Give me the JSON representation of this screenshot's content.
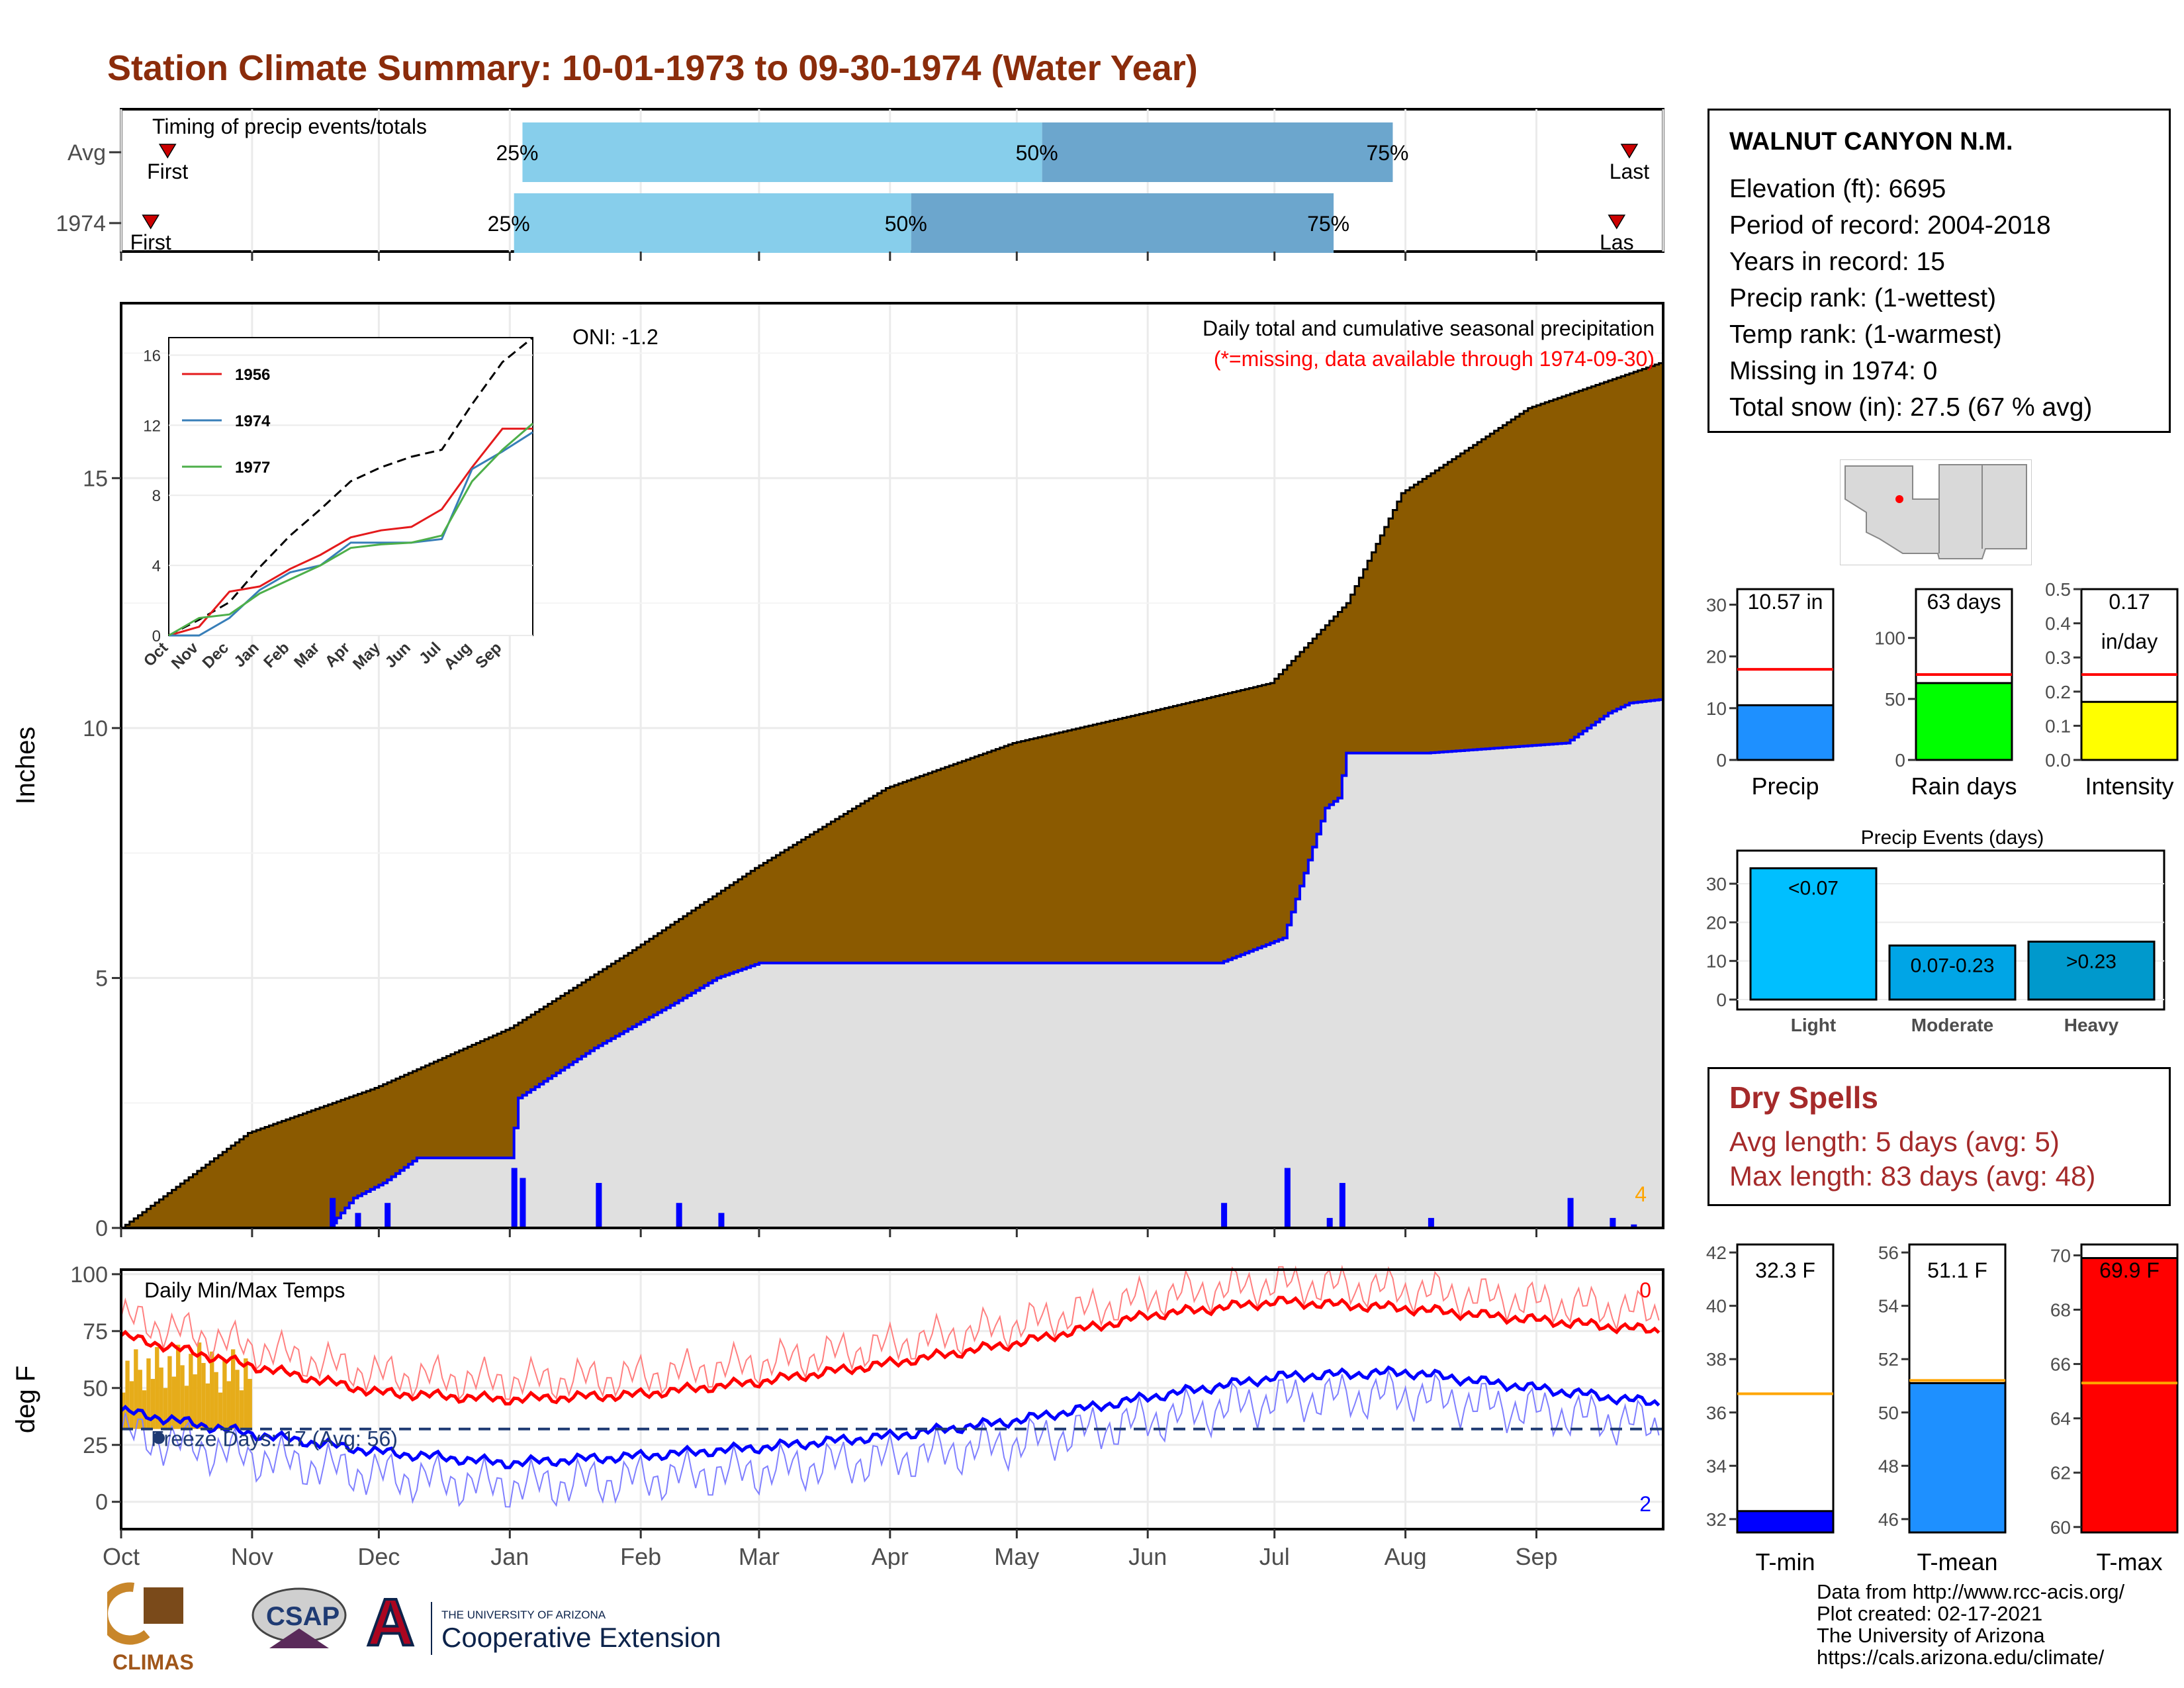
{
  "page": {
    "title": "Station Climate Summary: 10-01-1973 to 09-30-1974 (Water Year)"
  },
  "colors": {
    "title": "#8b2c0b",
    "bar_light": "#87ceeb",
    "bar_dark": "#6ca6cd",
    "cumulative_avg": "#8b5a00",
    "cumulative_year": "#e0e0e0",
    "year_line": "#0000ff",
    "daily_bars": "#0000ff",
    "freeze": "#e6ac1a",
    "tmax": "#ff0000",
    "tmin": "#0000ff"
  },
  "timing": {
    "label": "Timing of precip events/totals",
    "rows": [
      {
        "name": "Avg",
        "first": "First",
        "last": "Last",
        "p25": "25%",
        "p50": "50%",
        "p75": "75%",
        "p25_doy": 95,
        "p50_doy": 218,
        "p75_doy": 301,
        "first_doy": 11,
        "last_doy": 357
      },
      {
        "name": "1974",
        "first": "First",
        "last": "Las",
        "p25": "25%",
        "p50": "50%",
        "p75": "75%",
        "p25_doy": 93,
        "p50_doy": 187,
        "p75_doy": 287,
        "first_doy": 7,
        "last_doy": 354
      }
    ]
  },
  "main": {
    "ylabel": "Inches",
    "oni": "ONI: -1.2",
    "note1": "Daily total and cumulative seasonal precipitation",
    "note2": "(*=missing, data available through 1974-09-30)",
    "count_label": "4",
    "ylim": [
      0,
      18.5
    ],
    "yticks": [
      "0",
      "5",
      "10",
      "15"
    ]
  },
  "inset": {
    "series": [
      "1956",
      "1974",
      "1977"
    ],
    "yticks": [
      "0",
      "4",
      "8",
      "12",
      "16"
    ],
    "xticks": [
      "Oct",
      "Nov",
      "Dec",
      "Jan",
      "Feb",
      "Mar",
      "Apr",
      "May",
      "Jun",
      "Jul",
      "Aug",
      "Sep"
    ]
  },
  "temps": {
    "label": "Daily Min/Max Temps",
    "ylabel": "deg F",
    "freeze_label": "Freeze Days: 17 (Avg: 56)",
    "count_top": "0",
    "count_bottom": "2",
    "yticks": [
      "0",
      "25",
      "50",
      "75",
      "100"
    ]
  },
  "months": [
    "Oct",
    "Nov",
    "Dec",
    "Jan",
    "Feb",
    "Mar",
    "Apr",
    "May",
    "Jun",
    "Jul",
    "Aug",
    "Sep"
  ],
  "station": {
    "name": "WALNUT CANYON N.M.",
    "elevation": "Elevation (ft): 6695",
    "period": "Period of record: 2004-2018",
    "years": "Years in record: 15",
    "precip_rank": "Precip rank:  (1-wettest)",
    "temp_rank": "Temp rank:  (1-warmest)",
    "missing": "Missing in 1974: 0",
    "snow": "Total snow (in): 27.5 (67 % avg)"
  },
  "mini_bars": {
    "precip": {
      "label": "Precip",
      "value_text": "10.57 in",
      "value": 10.57,
      "avg": 17.5,
      "max": 33,
      "ticks": [
        "0",
        "10",
        "20",
        "30"
      ],
      "color": "#1e90ff"
    },
    "rain_days": {
      "label": "Rain days",
      "value_text": "63 days",
      "value": 63,
      "avg": 70,
      "max": 140,
      "ticks": [
        "0",
        "50",
        "100"
      ],
      "color": "#00ff00"
    },
    "intensity": {
      "label": "Intensity",
      "value_text": "0.17",
      "value_text2": "in/day",
      "value": 0.17,
      "avg": 0.25,
      "max": 0.5,
      "ticks": [
        "0.0",
        "0.1",
        "0.2",
        "0.3",
        "0.4",
        "0.5"
      ],
      "color": "#ffff00"
    }
  },
  "events": {
    "title": "Precip Events (days)",
    "ticks": [
      "0",
      "10",
      "20",
      "30"
    ],
    "bars": [
      {
        "label": "Light",
        "text": "<0.07",
        "value": 34,
        "color": "#00bfff"
      },
      {
        "label": "Moderate",
        "text": "0.07-0.23",
        "value": 14,
        "color": "#00a5e6"
      },
      {
        "label": "Heavy",
        "text": ">0.23",
        "value": 15,
        "color": "#0099cc"
      }
    ]
  },
  "dry_spells": {
    "title": "Dry Spells",
    "avg": "Avg length: 5 days (avg: 5)",
    "max": "Max length: 83 days (avg: 48)"
  },
  "temp_bars": {
    "tmin": {
      "label": "T-min",
      "value_text": "32.3 F",
      "value": 32.3,
      "avg": 36.7,
      "min": 31.5,
      "max": 42.3,
      "ticks": [
        "32",
        "34",
        "36",
        "38",
        "40",
        "42"
      ],
      "color": "#0000ff"
    },
    "tmean": {
      "label": "T-mean",
      "value_text": "51.1 F",
      "value": 51.1,
      "avg": 51.2,
      "min": 45.5,
      "max": 56.3,
      "ticks": [
        "46",
        "48",
        "50",
        "52",
        "54",
        "56"
      ],
      "color": "#1e90ff"
    },
    "tmax": {
      "label": "T-max",
      "value_text": "69.9 F",
      "value": 69.9,
      "avg": 65.3,
      "min": 59.8,
      "max": 70.4,
      "ticks": [
        "60",
        "62",
        "64",
        "66",
        "68",
        "70"
      ],
      "color": "#ff0000"
    }
  },
  "footer": {
    "l1": "Data from http://www.rcc-acis.org/",
    "l2": "Plot created: 02-17-2021",
    "l3": "The University of Arizona",
    "l4": "https://cals.arizona.edu/climate/"
  },
  "logos": {
    "climas": "CLIMAS",
    "csap": "CSAP",
    "ua_small": "THE UNIVERSITY OF ARIZONA",
    "ua_big": "Cooperative Extension"
  },
  "chart_data": [
    {
      "type": "area",
      "title": "Daily total and cumulative seasonal precipitation",
      "ylabel": "Inches",
      "ylim": [
        0,
        18.5
      ],
      "x_unit": "day of water year (Oct 1 = 0)",
      "series": [
        {
          "name": "average cumulative",
          "x": [
            0,
            30,
            60,
            92,
            120,
            150,
            181,
            211,
            242,
            272,
            290,
            303,
            333,
            364
          ],
          "values": [
            0,
            1.9,
            2.8,
            4.0,
            5.5,
            7.2,
            8.8,
            9.7,
            10.3,
            10.9,
            12.5,
            14.7,
            16.4,
            17.3
          ]
        },
        {
          "name": "1974 cumulative",
          "x": [
            0,
            49,
            55,
            62,
            70,
            92,
            94,
            112,
            131,
            141,
            151,
            175,
            182,
            260,
            275,
            285,
            288,
            290,
            309,
            342,
            352,
            357,
            364
          ],
          "values": [
            0,
            0,
            0.6,
            0.9,
            1.4,
            1.4,
            2.6,
            3.6,
            4.5,
            5.0,
            5.3,
            5.3,
            5.3,
            5.3,
            5.8,
            8.4,
            8.6,
            9.5,
            9.5,
            9.7,
            10.3,
            10.5,
            10.57
          ]
        }
      ]
    },
    {
      "type": "line",
      "title": "Daily Min/Max Temps",
      "ylabel": "deg F",
      "ylim": [
        -12,
        102
      ],
      "x": [
        "Oct",
        "Nov",
        "Dec",
        "Jan",
        "Feb",
        "Mar",
        "Apr",
        "May",
        "Jun",
        "Jul",
        "Aug",
        "Sep"
      ],
      "series": [
        {
          "name": "tmax normal",
          "values": [
            73,
            60,
            48,
            45,
            47,
            53,
            61,
            70,
            82,
            88,
            85,
            80
          ]
        },
        {
          "name": "tmin normal",
          "values": [
            40,
            30,
            22,
            17,
            20,
            24,
            29,
            36,
            46,
            55,
            57,
            50
          ]
        }
      ],
      "freeze_line": 32
    }
  ]
}
